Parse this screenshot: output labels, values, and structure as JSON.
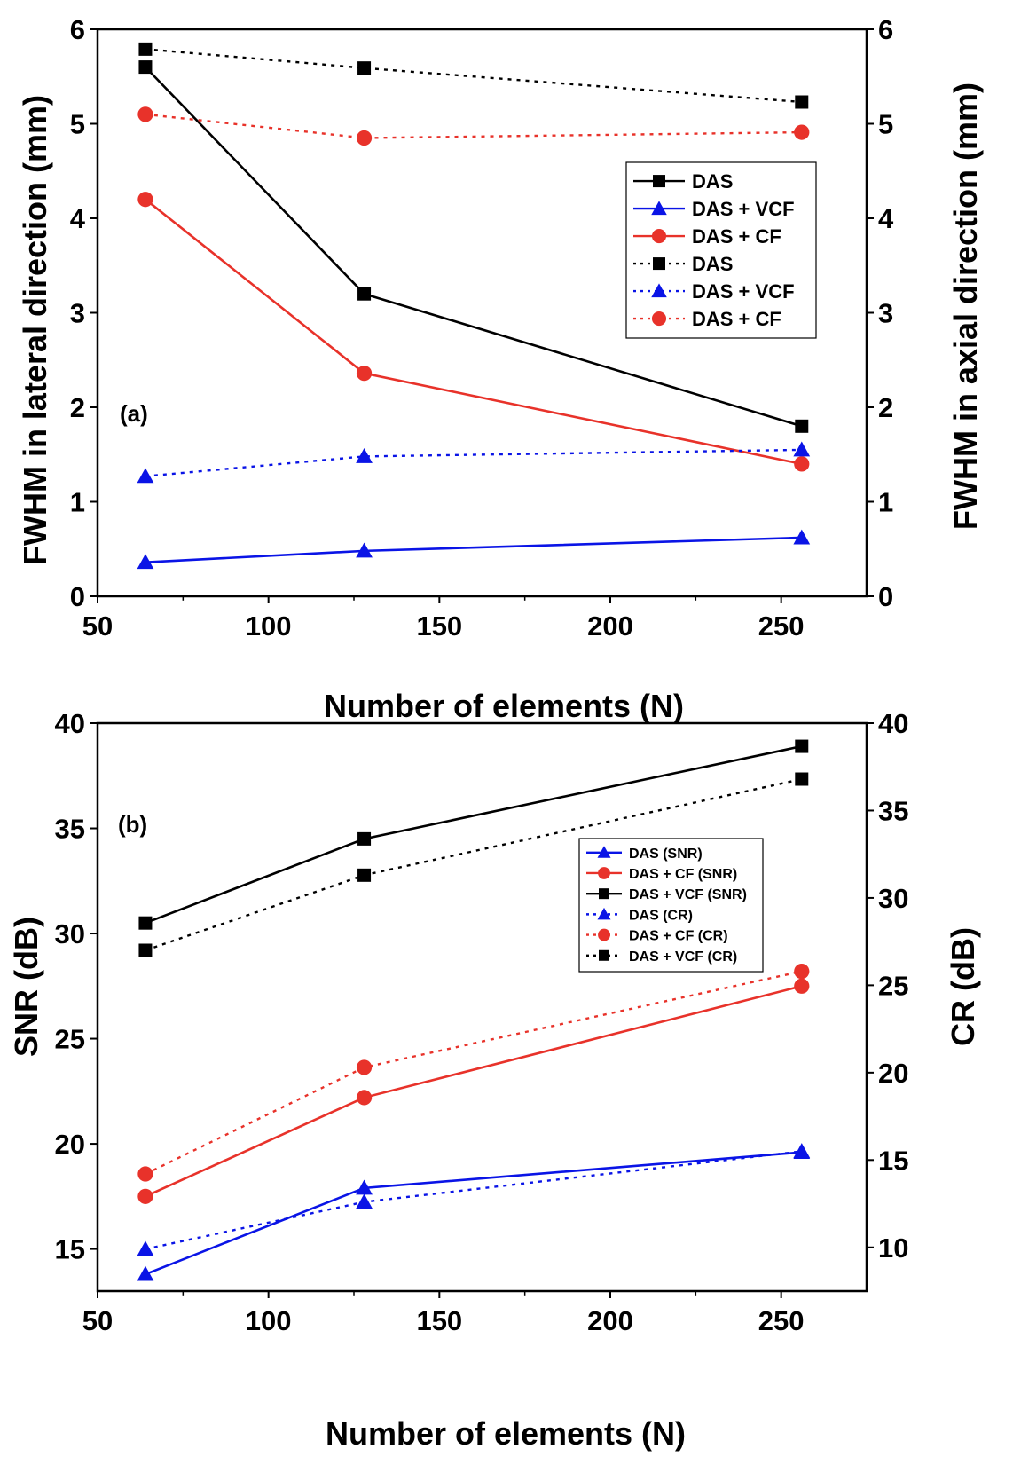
{
  "chart_data": [
    {
      "type": "line",
      "panel_label": "(a)",
      "xlabel": "Number of elements (N)",
      "ylabel_left": "FWHM in lateral direction (mm)",
      "ylabel_right": "FWHM in axial direction (mm)",
      "xlim": [
        50,
        275
      ],
      "ylim_left": [
        0,
        6
      ],
      "ylim_right": [
        0,
        6
      ],
      "x_ticks": [
        50,
        100,
        150,
        200,
        250
      ],
      "y_ticks_left": [
        0,
        1,
        2,
        3,
        4,
        5,
        6
      ],
      "y_ticks_right": [
        0,
        1,
        2,
        3,
        4,
        5,
        6
      ],
      "legend_position": "top-right",
      "x": [
        64,
        128,
        256
      ],
      "series": [
        {
          "name": "DAS",
          "axis": "left",
          "style": "solid",
          "marker": "square",
          "color": "#000000",
          "values": [
            5.6,
            3.2,
            1.8
          ]
        },
        {
          "name": "DAS + VCF",
          "axis": "left",
          "style": "solid",
          "marker": "triangle",
          "color": "#0a14e6",
          "values": [
            0.36,
            0.48,
            0.62
          ]
        },
        {
          "name": "DAS + CF",
          "axis": "left",
          "style": "solid",
          "marker": "circle",
          "color": "#e8322a",
          "values": [
            4.2,
            2.36,
            1.4
          ]
        },
        {
          "name": "DAS",
          "axis": "right",
          "style": "dotted",
          "marker": "square",
          "color": "#000000",
          "values": [
            5.79,
            5.59,
            5.23
          ]
        },
        {
          "name": "DAS + VCF",
          "axis": "right",
          "style": "dotted",
          "marker": "triangle",
          "color": "#0a14e6",
          "values": [
            1.27,
            1.48,
            1.55
          ]
        },
        {
          "name": "DAS + CF",
          "axis": "right",
          "style": "dotted",
          "marker": "circle",
          "color": "#e8322a",
          "values": [
            5.1,
            4.85,
            4.91
          ]
        }
      ]
    },
    {
      "type": "line",
      "panel_label": "(b)",
      "xlabel": "Number of elements (N)",
      "ylabel_left": "SNR (dB)",
      "ylabel_right": "CR (dB)",
      "xlim": [
        50,
        275
      ],
      "ylim_left": [
        13,
        40
      ],
      "ylim_right": [
        7.5,
        40
      ],
      "x_ticks": [
        50,
        100,
        150,
        200,
        250
      ],
      "y_ticks_left": [
        15,
        20,
        25,
        30,
        35,
        40
      ],
      "y_ticks_right": [
        10,
        15,
        20,
        25,
        30,
        35,
        40
      ],
      "legend_position": "center-right",
      "x": [
        64,
        128,
        256
      ],
      "series": [
        {
          "name": "DAS (SNR)",
          "axis": "left",
          "style": "solid",
          "marker": "triangle",
          "color": "#0a14e6",
          "values": [
            13.8,
            17.9,
            19.6
          ]
        },
        {
          "name": "DAS + CF (SNR)",
          "axis": "left",
          "style": "solid",
          "marker": "circle",
          "color": "#e8322a",
          "values": [
            17.5,
            22.2,
            27.5
          ]
        },
        {
          "name": "DAS + VCF (SNR)",
          "axis": "left",
          "style": "solid",
          "marker": "square",
          "color": "#000000",
          "values": [
            30.5,
            34.5,
            38.9
          ]
        },
        {
          "name": "DAS (CR)",
          "axis": "right",
          "style": "dotted",
          "marker": "triangle",
          "color": "#0a14e6",
          "values": [
            9.9,
            12.6,
            15.5
          ]
        },
        {
          "name": "DAS + CF (CR)",
          "axis": "right",
          "style": "dotted",
          "marker": "circle",
          "color": "#e8322a",
          "values": [
            14.2,
            20.3,
            25.8
          ]
        },
        {
          "name": "DAS + VCF (CR)",
          "axis": "right",
          "style": "dotted",
          "marker": "square",
          "color": "#000000",
          "values": [
            27.0,
            31.3,
            36.8
          ]
        }
      ]
    }
  ]
}
